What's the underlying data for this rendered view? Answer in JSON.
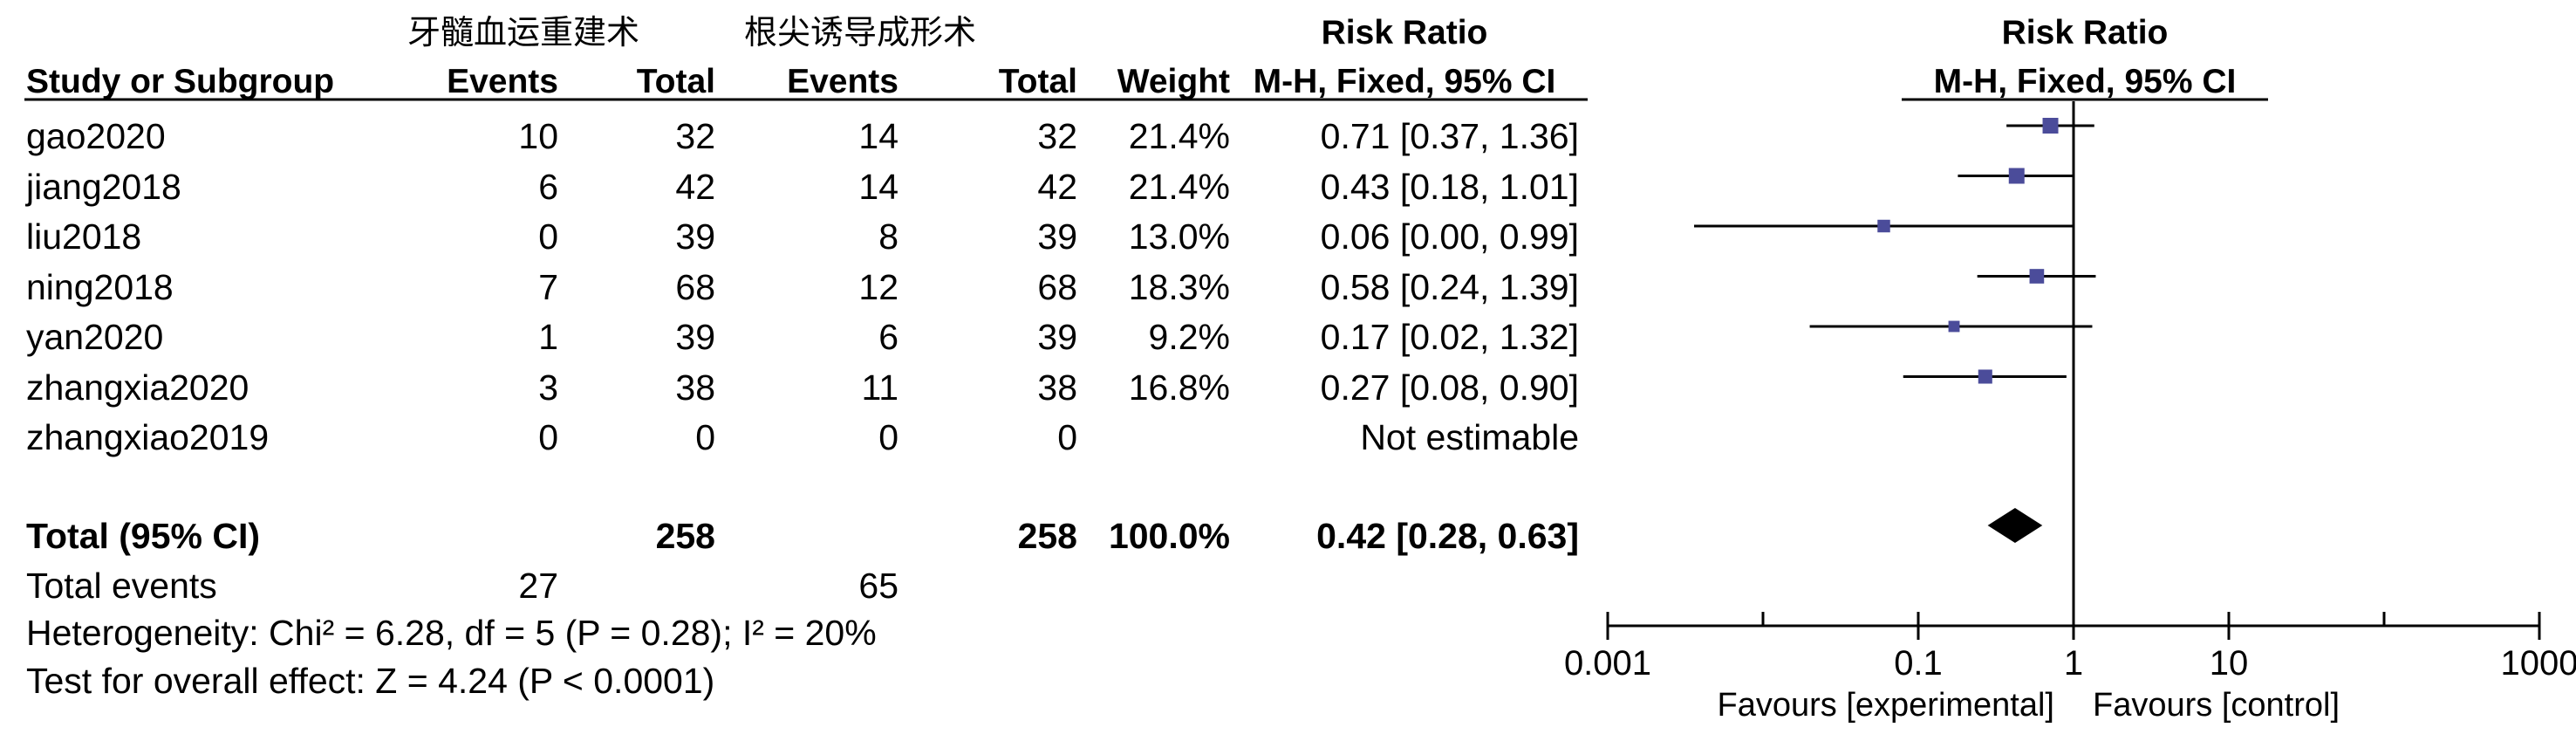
{
  "group_labels": {
    "experimental": "牙髓血运重建术",
    "control": "根尖诱导成形术"
  },
  "headers": {
    "study": "Study or Subgroup",
    "events_exp": "Events",
    "total_exp": "Total",
    "events_ctl": "Events",
    "total_ctl": "Total",
    "weight": "Weight",
    "rr_title": "Risk Ratio",
    "rr_method": "M-H, Fixed, 95% CI",
    "plot_title": "Risk Ratio",
    "plot_method": "M-H, Fixed, 95% CI"
  },
  "studies": [
    {
      "name": "gao2020",
      "e_exp": "10",
      "n_exp": "32",
      "e_ctl": "14",
      "n_ctl": "32",
      "weight": "21.4%",
      "ci_text": "0.71 [0.37, 1.36]"
    },
    {
      "name": "jiang2018",
      "e_exp": "6",
      "n_exp": "42",
      "e_ctl": "14",
      "n_ctl": "42",
      "weight": "21.4%",
      "ci_text": "0.43 [0.18, 1.01]"
    },
    {
      "name": "liu2018",
      "e_exp": "0",
      "n_exp": "39",
      "e_ctl": "8",
      "n_ctl": "39",
      "weight": "13.0%",
      "ci_text": "0.06 [0.00, 0.99]"
    },
    {
      "name": "ning2018",
      "e_exp": "7",
      "n_exp": "68",
      "e_ctl": "12",
      "n_ctl": "68",
      "weight": "18.3%",
      "ci_text": "0.58 [0.24, 1.39]"
    },
    {
      "name": "yan2020",
      "e_exp": "1",
      "n_exp": "39",
      "e_ctl": "6",
      "n_ctl": "39",
      "weight": "9.2%",
      "ci_text": "0.17 [0.02, 1.32]"
    },
    {
      "name": "zhangxia2020",
      "e_exp": "3",
      "n_exp": "38",
      "e_ctl": "11",
      "n_ctl": "38",
      "weight": "16.8%",
      "ci_text": "0.27 [0.08, 0.90]"
    },
    {
      "name": "zhangxiao2019",
      "e_exp": "0",
      "n_exp": "0",
      "e_ctl": "0",
      "n_ctl": "0",
      "weight": "",
      "ci_text": "Not estimable"
    }
  ],
  "total": {
    "label": "Total (95% CI)",
    "n_exp": "258",
    "n_ctl": "258",
    "weight": "100.0%",
    "ci_text": "0.42 [0.28, 0.63]"
  },
  "total_events": {
    "label": "Total events",
    "exp": "27",
    "ctl": "65"
  },
  "heterogeneity": "Heterogeneity: Chi² = 6.28, df = 5 (P = 0.28); I² = 20%",
  "overall_effect": "Test for overall effect: Z = 4.24 (P < 0.0001)",
  "chart_data": {
    "type": "scatter",
    "title": "Risk Ratio",
    "subtitle": "M-H, Fixed, 95% CI",
    "x_scale": "log",
    "xlim": [
      0.001,
      1000
    ],
    "x_ticks": [
      {
        "value": 0.001,
        "label": "0.001"
      },
      {
        "value": 0.1,
        "label": "0.1"
      },
      {
        "value": 1,
        "label": "1"
      },
      {
        "value": 10,
        "label": "10"
      },
      {
        "value": 1000,
        "label": "1000"
      }
    ],
    "minor_ticks": [
      0.01,
      100
    ],
    "reference_line": 1,
    "x_labels": {
      "left": "Favours [experimental]",
      "right": "Favours [control]"
    },
    "series": [
      {
        "studies": [
          "gao2020",
          "jiang2018",
          "liu2018",
          "ning2018",
          "yan2020",
          "zhangxia2020"
        ],
        "rr": [
          0.71,
          0.43,
          0.06,
          0.58,
          0.17,
          0.27
        ],
        "lower": [
          0.37,
          0.18,
          0.0036,
          0.24,
          0.02,
          0.08
        ],
        "upper": [
          1.36,
          1.01,
          0.99,
          1.39,
          1.32,
          0.9
        ],
        "weight": [
          21.4,
          21.4,
          13.0,
          18.3,
          9.2,
          16.8
        ]
      }
    ],
    "pooled": {
      "rr": 0.42,
      "lower": 0.28,
      "upper": 0.63
    },
    "colors": {
      "marker": "#4b4c9a",
      "line": "#000000",
      "diamond": "#000000"
    }
  }
}
